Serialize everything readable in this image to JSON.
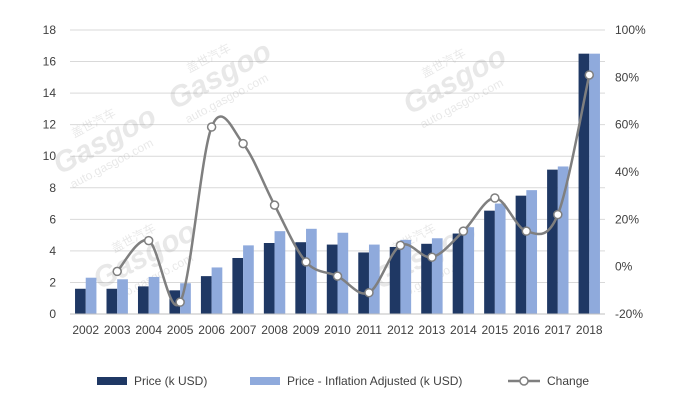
{
  "chart_data": {
    "type": "bar",
    "categories": [
      "2002",
      "2003",
      "2004",
      "2005",
      "2006",
      "2007",
      "2008",
      "2009",
      "2010",
      "2011",
      "2012",
      "2013",
      "2014",
      "2015",
      "2016",
      "2017",
      "2018"
    ],
    "series": [
      {
        "name": "Price (k USD)",
        "kind": "bar",
        "axis": "left",
        "color": "#1f3864",
        "values": [
          1.6,
          1.6,
          1.75,
          1.5,
          2.4,
          3.55,
          4.5,
          4.55,
          4.4,
          3.9,
          4.25,
          4.45,
          5.1,
          6.55,
          7.5,
          9.15,
          16.5
        ]
      },
      {
        "name": "Price - Inflation Adjusted (k USD)",
        "kind": "bar",
        "axis": "left",
        "color": "#8faadc",
        "values": [
          2.3,
          2.2,
          2.35,
          1.95,
          2.95,
          4.35,
          5.25,
          5.4,
          5.15,
          4.4,
          4.7,
          4.8,
          5.5,
          7.0,
          7.85,
          9.35,
          16.5
        ]
      },
      {
        "name": "Change",
        "kind": "line",
        "axis": "right",
        "color": "#7f7f7f",
        "values": [
          null,
          -2,
          11,
          -15,
          59,
          52,
          26,
          2,
          -4,
          -11,
          9,
          4,
          15,
          29,
          15,
          22,
          81
        ]
      }
    ],
    "y_left": {
      "min": 0,
      "max": 18,
      "step": 2,
      "ticks": [
        "0",
        "2",
        "4",
        "6",
        "8",
        "10",
        "12",
        "14",
        "16",
        "18"
      ]
    },
    "y_right": {
      "min": -20,
      "max": 100,
      "step": 20,
      "ticks": [
        "-20%",
        "0%",
        "20%",
        "40%",
        "60%",
        "80%",
        "100%"
      ]
    },
    "gridlines": true,
    "legend_position": "bottom",
    "watermark": {
      "brand": "Gasgoo",
      "domain": "auto.gasgoo.com",
      "cn": "盖世汽车"
    }
  }
}
